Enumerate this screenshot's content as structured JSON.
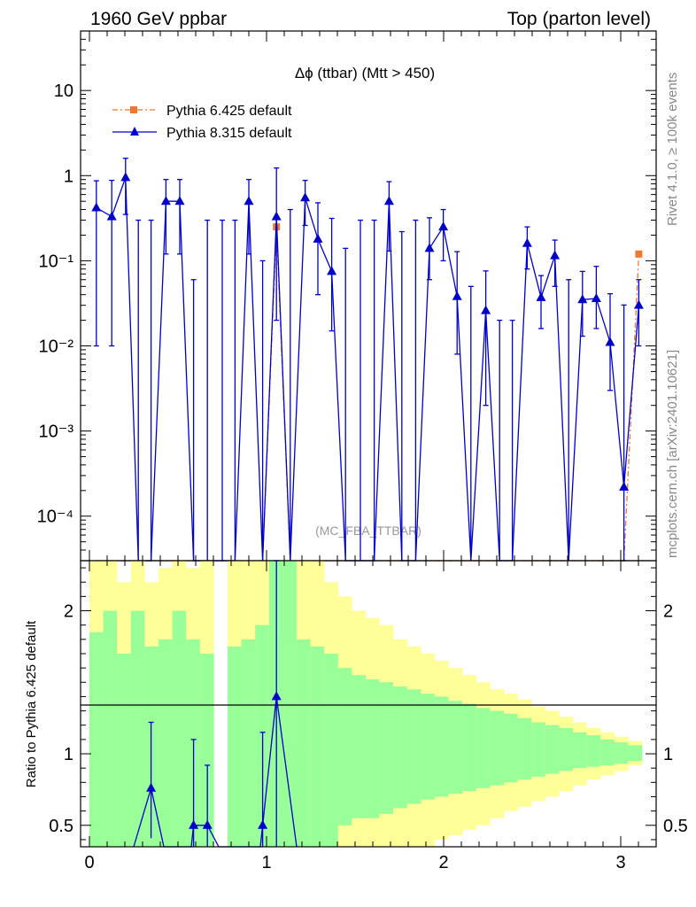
{
  "header": {
    "left": "1960 GeV ppbar",
    "right": "Top (parton level)"
  },
  "side_labels": {
    "rivet": "Rivet 4.1.0, ≥ 100k events",
    "source": "mcplots.cern.ch [arXiv:2401.10621]"
  },
  "colors": {
    "pythia6": "#ee7733",
    "pythia8": "#0000cc",
    "band_inner": "#99ff99",
    "band_outer": "#ffff99"
  },
  "chart_data": [
    {
      "type": "line",
      "title": "Δϕ (ttbar) (Mtt > 450)",
      "watermark": "(MC_FBA_TTBAR)",
      "yscale": "log",
      "xlim": [
        -0.05,
        3.2
      ],
      "ylim": [
        3e-05,
        50
      ],
      "ytick_labels": [
        "10⁻⁴",
        "10⁻³",
        "10⁻²",
        "10⁻¹",
        "1",
        "10"
      ],
      "legend": [
        "Pythia 6.425 default",
        "Pythia 8.315 default"
      ],
      "x": [
        0.039,
        0.126,
        0.204,
        0.276,
        0.348,
        0.432,
        0.51,
        0.588,
        0.666,
        0.75,
        0.822,
        0.9,
        0.978,
        1.056,
        1.134,
        1.218,
        1.29,
        1.368,
        1.446,
        1.53,
        1.608,
        1.692,
        1.764,
        1.842,
        1.92,
        1.998,
        2.076,
        2.154,
        2.238,
        2.316,
        2.388,
        2.472,
        2.55,
        2.628,
        2.706,
        2.784,
        2.862,
        2.94,
        3.018,
        3.102
      ],
      "series": [
        {
          "name": "Pythia 8.315 default",
          "values": [
            0.42,
            0.33,
            0.95,
            0,
            0,
            0.5,
            0.5,
            0,
            0,
            0,
            0,
            0.5,
            0,
            0.33,
            0,
            0.55,
            0.18,
            0.075,
            0,
            0,
            0,
            0.5,
            0,
            0,
            0.14,
            0.25,
            0.038,
            0,
            0.026,
            0,
            0,
            0.16,
            0.037,
            0.115,
            0,
            0.035,
            0.036,
            0.011,
            0.00022,
            0.03
          ],
          "err_lo": [
            0.41,
            0.32,
            0.6,
            0,
            0,
            0.38,
            0.38,
            0,
            0,
            0,
            0,
            0.38,
            0,
            0.31,
            0,
            0.29,
            0.14,
            0.06,
            0,
            0,
            0,
            0.37,
            0,
            0,
            0.08,
            0.15,
            0.03,
            0,
            0.024,
            0,
            0,
            0.08,
            0.021,
            0.065,
            0,
            0.022,
            0.02,
            0.008,
            0.0002,
            0.02
          ],
          "err_hi": [
            0.45,
            0.55,
            0.65,
            0.3,
            0.3,
            0.4,
            0.4,
            0.06,
            0.3,
            0.3,
            0.3,
            0.4,
            0.1,
            0.9,
            0.4,
            0.33,
            0.3,
            0.24,
            0.14,
            0.3,
            0.3,
            0.35,
            0.22,
            0.3,
            0.18,
            0.15,
            0.09,
            0.05,
            0.05,
            0.02,
            0.02,
            0.09,
            0.03,
            0.06,
            0.06,
            0.04,
            0.05,
            0.03,
            0.03,
            0.03
          ]
        },
        {
          "name": "Pythia 6.425 default",
          "values": [
            0,
            0,
            0,
            0,
            0,
            0,
            0,
            0,
            0,
            0,
            0,
            0,
            0,
            0.25,
            0,
            0,
            0,
            0,
            0,
            0,
            0,
            0,
            0,
            0,
            0,
            0,
            0,
            0,
            0,
            0,
            0,
            0,
            0,
            0,
            0,
            0,
            0,
            0,
            0,
            0.12
          ]
        }
      ]
    },
    {
      "type": "line",
      "ylabel": "Ratio to Pythia 6.425 default",
      "ylim": [
        0.35,
        2.35
      ],
      "xlim": [
        -0.05,
        3.2
      ],
      "xtick_labels": [
        "0",
        "1",
        "2",
        "3"
      ],
      "ytick_labels": [
        "0.5",
        "1",
        "2"
      ],
      "band_edges": [
        0,
        0.078,
        0.156,
        0.234,
        0.312,
        0.39,
        0.468,
        0.546,
        0.624,
        0.702,
        0.78,
        0.858,
        0.936,
        1.014,
        1.092,
        1.17,
        1.248,
        1.326,
        1.404,
        1.482,
        1.56,
        1.638,
        1.716,
        1.794,
        1.872,
        1.95,
        2.028,
        2.106,
        2.184,
        2.262,
        2.34,
        2.418,
        2.496,
        2.574,
        2.652,
        2.73,
        2.808,
        2.886,
        2.964,
        3.042,
        3.12
      ],
      "inner_hi": [
        1.85,
        2.0,
        1.7,
        2.0,
        1.75,
        1.8,
        2.0,
        1.8,
        1.7,
        0,
        1.75,
        1.8,
        1.9,
        2.35,
        2.35,
        1.8,
        1.75,
        1.7,
        1.6,
        1.55,
        1.52,
        1.5,
        1.47,
        1.45,
        1.42,
        1.4,
        1.37,
        1.35,
        1.32,
        1.3,
        1.28,
        1.25,
        1.22,
        1.2,
        1.18,
        1.15,
        1.13,
        1.1,
        1.08,
        1.06
      ],
      "inner_lo": [
        0.35,
        0.35,
        0.35,
        0.35,
        0.35,
        0.35,
        0.35,
        0.35,
        0.35,
        0,
        0.35,
        0.35,
        0.35,
        0.35,
        0.35,
        0.35,
        0.35,
        0.35,
        0.5,
        0.55,
        0.55,
        0.58,
        0.62,
        0.65,
        0.68,
        0.7,
        0.72,
        0.74,
        0.76,
        0.78,
        0.8,
        0.82,
        0.84,
        0.86,
        0.88,
        0.9,
        0.91,
        0.92,
        0.93,
        0.95
      ],
      "outer_hi": [
        2.35,
        2.35,
        2.2,
        2.35,
        2.2,
        2.3,
        2.35,
        2.3,
        2.35,
        0,
        2.35,
        2.35,
        2.35,
        2.35,
        2.35,
        2.35,
        2.35,
        2.2,
        2.1,
        2.0,
        1.95,
        1.9,
        1.8,
        1.75,
        1.7,
        1.65,
        1.6,
        1.55,
        1.5,
        1.45,
        1.42,
        1.38,
        1.33,
        1.3,
        1.26,
        1.22,
        1.18,
        1.15,
        1.12,
        1.09
      ],
      "outer_lo": [
        0.35,
        0.35,
        0.35,
        0.35,
        0.35,
        0.35,
        0.35,
        0.35,
        0.35,
        0,
        0.35,
        0.35,
        0.35,
        0.35,
        0.35,
        0.35,
        0.35,
        0.35,
        0.35,
        0.35,
        0.35,
        0.35,
        0.35,
        0.35,
        0.35,
        0.4,
        0.43,
        0.47,
        0.5,
        0.55,
        0.6,
        0.63,
        0.67,
        0.7,
        0.74,
        0.78,
        0.82,
        0.85,
        0.88,
        0.92
      ],
      "ratio_points": [
        {
          "x": 0.348,
          "y": 0.76,
          "lo": 0.41,
          "hi": 1.22
        },
        {
          "x": 0.588,
          "y": 0.5,
          "lo": 0.35,
          "hi": 1.1
        },
        {
          "x": 0.666,
          "y": 0.5,
          "lo": 0.35,
          "hi": 0.92
        },
        {
          "x": 0.978,
          "y": 0.5,
          "lo": 0.35,
          "hi": 1.15
        },
        {
          "x": 1.056,
          "y": 1.4,
          "lo": 0.35,
          "hi": 2.35
        }
      ],
      "ratio_line": [
        {
          "x": 0.25,
          "y": 0.35
        },
        {
          "x": 0.348,
          "y": 0.76
        },
        {
          "x": 0.42,
          "y": 0.35
        },
        {
          "x": 0.575,
          "y": 0.35
        },
        {
          "x": 0.588,
          "y": 0.5
        },
        {
          "x": 0.666,
          "y": 0.5
        },
        {
          "x": 0.73,
          "y": 0.35
        },
        {
          "x": 0.965,
          "y": 0.35
        },
        {
          "x": 0.978,
          "y": 0.5
        },
        {
          "x": 1.056,
          "y": 1.4
        },
        {
          "x": 1.17,
          "y": 0.35
        }
      ]
    }
  ]
}
